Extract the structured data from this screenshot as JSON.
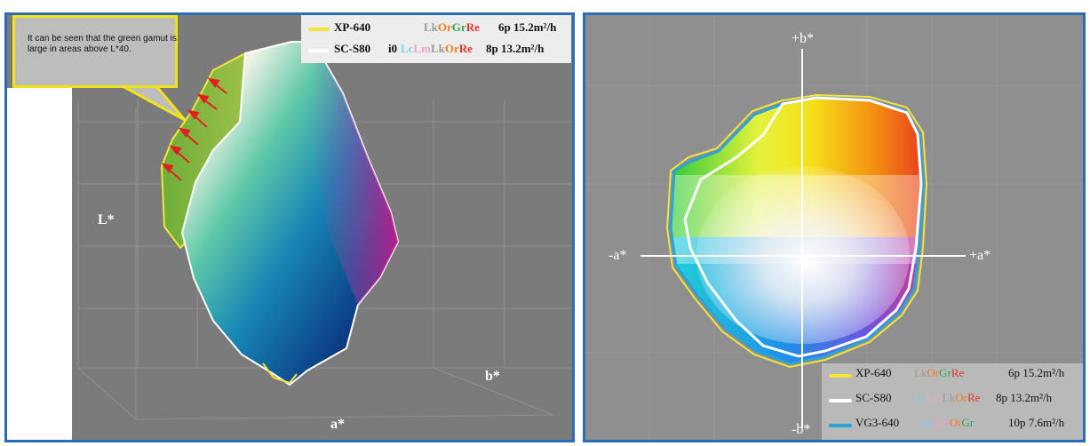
{
  "left_panel": {
    "callout": "It can be seen that the green gamut is large in areas above L*40.",
    "legend": [
      {
        "device": "XP-640",
        "inks": [
          "Lk",
          "Or",
          "Gr",
          "Re"
        ],
        "spec": "6p 15.2m²/h",
        "line_color": "#f1e43a"
      },
      {
        "device": "SC-S80",
        "device_suffix": "i0",
        "inks": [
          "Lc",
          "Lm",
          "Lk",
          "Or",
          "Re"
        ],
        "spec": "8p 13.2m²/h",
        "line_color": "#ffffff"
      }
    ],
    "axes": {
      "l": "L*",
      "a": "a*",
      "b": "b*"
    }
  },
  "right_panel": {
    "axes": {
      "b_pos": "+b*",
      "b_neg": "-b*",
      "a_neg": "-a*",
      "a_pos": "+a*"
    },
    "legend": [
      {
        "device": "XP-640",
        "inks": [
          "Lk",
          "Or",
          "Gr",
          "Re"
        ],
        "spec": "6p 15.2m²/h",
        "line_color": "#f1e43a"
      },
      {
        "device": "SC-S80",
        "inks": [
          "Lc",
          "Lm",
          "Lk",
          "Or",
          "Re"
        ],
        "spec": "8p 13.2m²/h",
        "line_color": "#ffffff"
      },
      {
        "device": "VG3-640",
        "inks": [
          "Lc",
          "Lm",
          "Or",
          "Gr"
        ],
        "spec": "10p 7.6m²/h",
        "line_color": "#2aa3d8"
      }
    ]
  },
  "colors": {
    "ink_Lk": "#9a9a9a",
    "ink_Or": "#f07d1a",
    "ink_Gr": "#2fa84f",
    "ink_Re": "#e0322b",
    "ink_Lc": "#7fd0ee",
    "ink_Lm": "#f0a3c8",
    "frame": "#2b6cb6",
    "callout_border": "#f2e218",
    "arrow": "#e02020"
  }
}
